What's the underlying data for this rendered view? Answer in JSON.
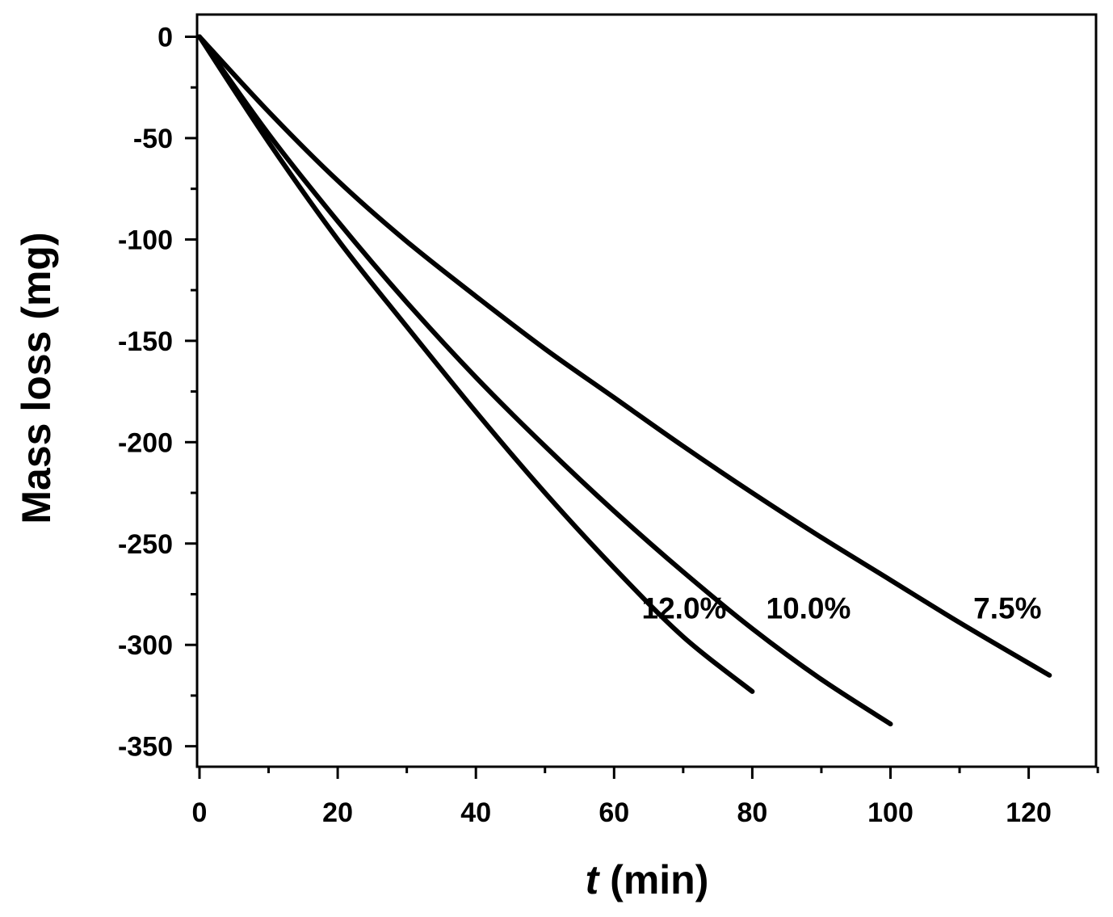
{
  "chart_data": {
    "type": "line",
    "xlabel": {
      "italic": "t",
      "rest": " (min)"
    },
    "ylabel": "Mass loss (mg)",
    "xlim": [
      0,
      130
    ],
    "ylim": [
      -360,
      5
    ],
    "x_ticks": [
      0,
      20,
      40,
      60,
      80,
      100,
      120
    ],
    "y_ticks": [
      0,
      -50,
      -100,
      -150,
      -200,
      -250,
      -300,
      -350
    ],
    "x_minor_step": 10,
    "y_minor_step": 25,
    "grid": false,
    "legend": "none (series labelled inline)",
    "line_color": "#000000",
    "series": [
      {
        "name": "12.0%",
        "label": "12.0%",
        "label_pos": [
          64,
          -287
        ],
        "x": [
          0,
          10,
          20,
          30,
          40,
          50,
          60,
          70,
          80
        ],
        "y": [
          0,
          -52,
          -100,
          -143,
          -185,
          -225,
          -262,
          -296,
          -323
        ]
      },
      {
        "name": "10.0%",
        "label": "10.0%",
        "label_pos": [
          82,
          -287
        ],
        "x": [
          0,
          10,
          20,
          30,
          40,
          50,
          60,
          70,
          80,
          90,
          100
        ],
        "y": [
          0,
          -48,
          -91,
          -131,
          -168,
          -202,
          -234,
          -264,
          -292,
          -317,
          -339
        ]
      },
      {
        "name": "7.5%",
        "label": "7.5%",
        "label_pos": [
          112,
          -287
        ],
        "x": [
          0,
          10,
          20,
          30,
          40,
          50,
          60,
          70,
          80,
          90,
          100,
          110,
          123
        ],
        "y": [
          0,
          -37,
          -71,
          -101,
          -128,
          -154,
          -178,
          -202,
          -225,
          -247,
          -268,
          -289,
          -315
        ]
      }
    ]
  }
}
